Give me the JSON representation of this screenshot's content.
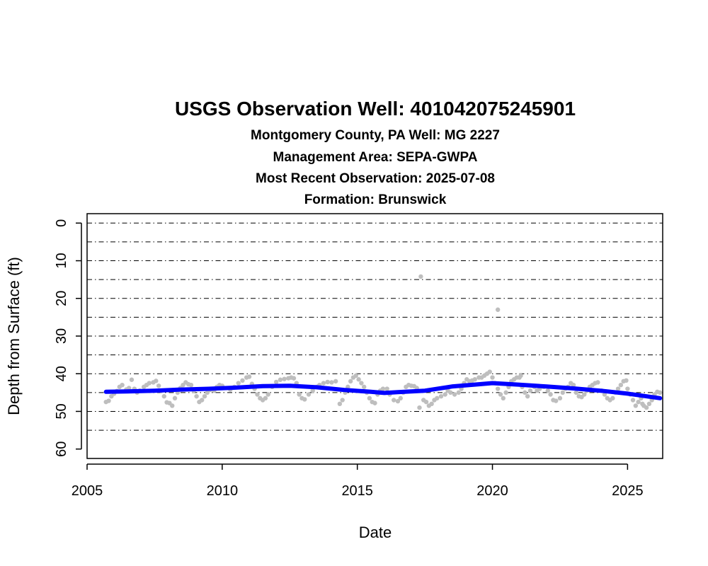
{
  "chart_data": {
    "type": "scatter",
    "title": "USGS Observation Well:  401042075245901",
    "subtitle_lines": [
      "Montgomery County, PA   Well: MG 2227",
      "Management Area: SEPA-GWPA",
      "Most Recent Observation: 2025-07-08",
      "Formation: Brunswick"
    ],
    "xlabel": "Date",
    "ylabel": "Depth from Surface (ft)",
    "x_ticks": [
      "2005",
      "2010",
      "2015",
      "2020",
      "2025"
    ],
    "y_ticks": [
      "0",
      "10",
      "20",
      "30",
      "40",
      "50",
      "60"
    ],
    "xlim": [
      2005.0,
      2026.3
    ],
    "ylim": [
      62.5,
      -2.5
    ],
    "y_reversed": true,
    "grid": "horizontal dash-dot lines every 5 ft",
    "colors": {
      "points": "#bebebe",
      "trend": "#0000ff",
      "grid": "#000000"
    },
    "series": [
      {
        "values": [
          [
            2005.7,
            47.5
          ],
          [
            2005.8,
            47.2
          ],
          [
            2005.9,
            46.0
          ],
          [
            2006.0,
            45.3
          ],
          [
            2006.1,
            44.6
          ],
          [
            2006.2,
            43.5
          ],
          [
            2006.3,
            43.0
          ],
          [
            2006.45,
            44.2
          ],
          [
            2006.55,
            43.8
          ],
          [
            2006.65,
            41.6
          ],
          [
            2006.75,
            44.0
          ],
          [
            2006.85,
            45.0
          ],
          [
            2006.95,
            44.5
          ],
          [
            2007.1,
            43.5
          ],
          [
            2007.2,
            43.0
          ],
          [
            2007.3,
            42.5
          ],
          [
            2007.45,
            42.3
          ],
          [
            2007.55,
            41.9
          ],
          [
            2007.65,
            43.2
          ],
          [
            2007.75,
            44.5
          ],
          [
            2007.85,
            46.0
          ],
          [
            2007.95,
            47.6
          ],
          [
            2008.05,
            47.8
          ],
          [
            2008.15,
            48.5
          ],
          [
            2008.25,
            46.5
          ],
          [
            2008.35,
            45.0
          ],
          [
            2008.45,
            43.8
          ],
          [
            2008.55,
            43.0
          ],
          [
            2008.65,
            42.3
          ],
          [
            2008.75,
            42.8
          ],
          [
            2008.85,
            43.0
          ],
          [
            2008.95,
            44.5
          ],
          [
            2009.05,
            46.0
          ],
          [
            2009.15,
            47.5
          ],
          [
            2009.25,
            47.0
          ],
          [
            2009.35,
            46.0
          ],
          [
            2009.45,
            45.0
          ],
          [
            2009.55,
            44.3
          ],
          [
            2009.7,
            44.5
          ],
          [
            2009.8,
            43.5
          ],
          [
            2009.9,
            43.0
          ],
          [
            2010.0,
            43.2
          ],
          [
            2010.3,
            44.2
          ],
          [
            2010.45,
            43.5
          ],
          [
            2010.6,
            42.5
          ],
          [
            2010.75,
            41.8
          ],
          [
            2010.9,
            41.0
          ],
          [
            2011.0,
            40.8
          ],
          [
            2011.1,
            42.7
          ],
          [
            2011.2,
            44.0
          ],
          [
            2011.3,
            45.5
          ],
          [
            2011.4,
            46.5
          ],
          [
            2011.5,
            47.0
          ],
          [
            2011.6,
            46.5
          ],
          [
            2011.7,
            45.5
          ],
          [
            2011.85,
            43.5
          ],
          [
            2012.0,
            42.2
          ],
          [
            2012.15,
            41.6
          ],
          [
            2012.3,
            41.4
          ],
          [
            2012.45,
            41.2
          ],
          [
            2012.55,
            41.0
          ],
          [
            2012.65,
            41.2
          ],
          [
            2012.75,
            42.5
          ],
          [
            2012.85,
            45.5
          ],
          [
            2012.95,
            46.5
          ],
          [
            2013.05,
            46.8
          ],
          [
            2013.2,
            45.5
          ],
          [
            2013.35,
            44.5
          ],
          [
            2013.5,
            43.5
          ],
          [
            2013.6,
            43.0
          ],
          [
            2013.75,
            42.5
          ],
          [
            2013.9,
            42.2
          ],
          [
            2014.05,
            42.3
          ],
          [
            2014.2,
            42.0
          ],
          [
            2014.35,
            48.0
          ],
          [
            2014.45,
            47.0
          ],
          [
            2014.55,
            45.0
          ],
          [
            2014.65,
            43.5
          ],
          [
            2014.75,
            42.0
          ],
          [
            2014.85,
            41.0
          ],
          [
            2014.95,
            40.5
          ],
          [
            2015.05,
            41.5
          ],
          [
            2015.15,
            42.5
          ],
          [
            2015.25,
            43.5
          ],
          [
            2015.35,
            45.0
          ],
          [
            2015.45,
            46.5
          ],
          [
            2015.55,
            47.5
          ],
          [
            2015.65,
            47.8
          ],
          [
            2015.75,
            45.5
          ],
          [
            2015.85,
            44.5
          ],
          [
            2015.95,
            44.0
          ],
          [
            2016.1,
            44.0
          ],
          [
            2016.2,
            45.5
          ],
          [
            2016.35,
            47.0
          ],
          [
            2016.5,
            47.3
          ],
          [
            2016.6,
            46.5
          ],
          [
            2016.7,
            45.0
          ],
          [
            2016.8,
            43.5
          ],
          [
            2016.9,
            43.0
          ],
          [
            2017.0,
            43.2
          ],
          [
            2017.1,
            43.3
          ],
          [
            2017.2,
            43.8
          ],
          [
            2017.3,
            49.0
          ],
          [
            2017.45,
            47.0
          ],
          [
            2017.55,
            47.5
          ],
          [
            2017.65,
            48.5
          ],
          [
            2017.75,
            48.0
          ],
          [
            2017.85,
            47.0
          ],
          [
            2017.95,
            46.5
          ],
          [
            2018.1,
            46.0
          ],
          [
            2017.35,
            14.2
          ],
          [
            2018.25,
            45.5
          ],
          [
            2018.35,
            44.5
          ],
          [
            2018.45,
            45.0
          ],
          [
            2018.6,
            45.5
          ],
          [
            2018.75,
            45.0
          ],
          [
            2018.85,
            44.0
          ],
          [
            2018.95,
            42.5
          ],
          [
            2019.05,
            41.5
          ],
          [
            2019.15,
            42.0
          ],
          [
            2019.25,
            41.8
          ],
          [
            2019.35,
            41.5
          ],
          [
            2019.5,
            41.0
          ],
          [
            2019.6,
            41.0
          ],
          [
            2019.7,
            40.5
          ],
          [
            2019.8,
            40.0
          ],
          [
            2019.9,
            39.5
          ],
          [
            2020.0,
            41.0
          ],
          [
            2020.1,
            42.5
          ],
          [
            2020.2,
            44.0
          ],
          [
            2020.3,
            45.5
          ],
          [
            2020.4,
            46.5
          ],
          [
            2020.5,
            45.0
          ],
          [
            2020.6,
            43.5
          ],
          [
            2020.7,
            42.0
          ],
          [
            2020.8,
            41.5
          ],
          [
            2020.9,
            41.0
          ],
          [
            2021.0,
            41.0
          ],
          [
            2021.05,
            40.5
          ],
          [
            2020.2,
            23.0
          ],
          [
            2021.1,
            43.5
          ],
          [
            2021.2,
            45.0
          ],
          [
            2021.3,
            46.0
          ],
          [
            2021.4,
            44.5
          ],
          [
            2021.55,
            43.5
          ],
          [
            2021.65,
            44.5
          ],
          [
            2021.75,
            44.0
          ],
          [
            2021.9,
            43.5
          ],
          [
            2022.05,
            44.5
          ],
          [
            2022.15,
            45.5
          ],
          [
            2022.25,
            47.0
          ],
          [
            2022.35,
            47.2
          ],
          [
            2022.5,
            46.5
          ],
          [
            2022.6,
            45.0
          ],
          [
            2022.7,
            44.0
          ],
          [
            2022.8,
            43.5
          ],
          [
            2022.9,
            42.5
          ],
          [
            2023.0,
            43.0
          ],
          [
            2023.1,
            45.0
          ],
          [
            2023.2,
            46.0
          ],
          [
            2023.3,
            46.2
          ],
          [
            2023.4,
            45.5
          ],
          [
            2023.5,
            44.5
          ],
          [
            2023.6,
            43.5
          ],
          [
            2023.7,
            43.0
          ],
          [
            2023.8,
            42.5
          ],
          [
            2023.9,
            42.3
          ],
          [
            2024.05,
            44.5
          ],
          [
            2024.15,
            45.5
          ],
          [
            2024.25,
            46.5
          ],
          [
            2024.35,
            47.0
          ],
          [
            2024.45,
            46.5
          ],
          [
            2024.55,
            45.0
          ],
          [
            2024.65,
            44.0
          ],
          [
            2024.75,
            43.0
          ],
          [
            2024.85,
            42.0
          ],
          [
            2024.95,
            41.8
          ],
          [
            2025.0,
            44.0
          ],
          [
            2025.1,
            45.5
          ],
          [
            2025.2,
            47.0
          ],
          [
            2025.3,
            48.5
          ],
          [
            2025.4,
            47.5
          ],
          [
            2025.5,
            46.5
          ],
          [
            2025.55,
            48.0
          ],
          [
            2025.6,
            48.5
          ],
          [
            2025.7,
            49.0
          ],
          [
            2025.8,
            48.0
          ],
          [
            2025.9,
            47.0
          ],
          [
            2026.0,
            45.5
          ],
          [
            2026.1,
            44.8
          ],
          [
            2026.2,
            45.0
          ]
        ]
      },
      {
        "values": [
          [
            2005.7,
            44.8
          ],
          [
            2006.5,
            44.7
          ],
          [
            2007.5,
            44.5
          ],
          [
            2008.5,
            44.2
          ],
          [
            2009.5,
            44.0
          ],
          [
            2010.5,
            43.7
          ],
          [
            2011.5,
            43.3
          ],
          [
            2012.5,
            43.2
          ],
          [
            2013.5,
            43.6
          ],
          [
            2014.5,
            44.3
          ],
          [
            2015.5,
            44.8
          ],
          [
            2016.0,
            45.1
          ],
          [
            2016.5,
            44.9
          ],
          [
            2017.5,
            44.5
          ],
          [
            2018.5,
            43.4
          ],
          [
            2019.5,
            42.8
          ],
          [
            2020.0,
            42.5
          ],
          [
            2021.0,
            42.9
          ],
          [
            2022.0,
            43.4
          ],
          [
            2023.0,
            43.9
          ],
          [
            2024.0,
            44.5
          ],
          [
            2025.0,
            45.3
          ],
          [
            2026.2,
            46.5
          ]
        ]
      }
    ]
  }
}
